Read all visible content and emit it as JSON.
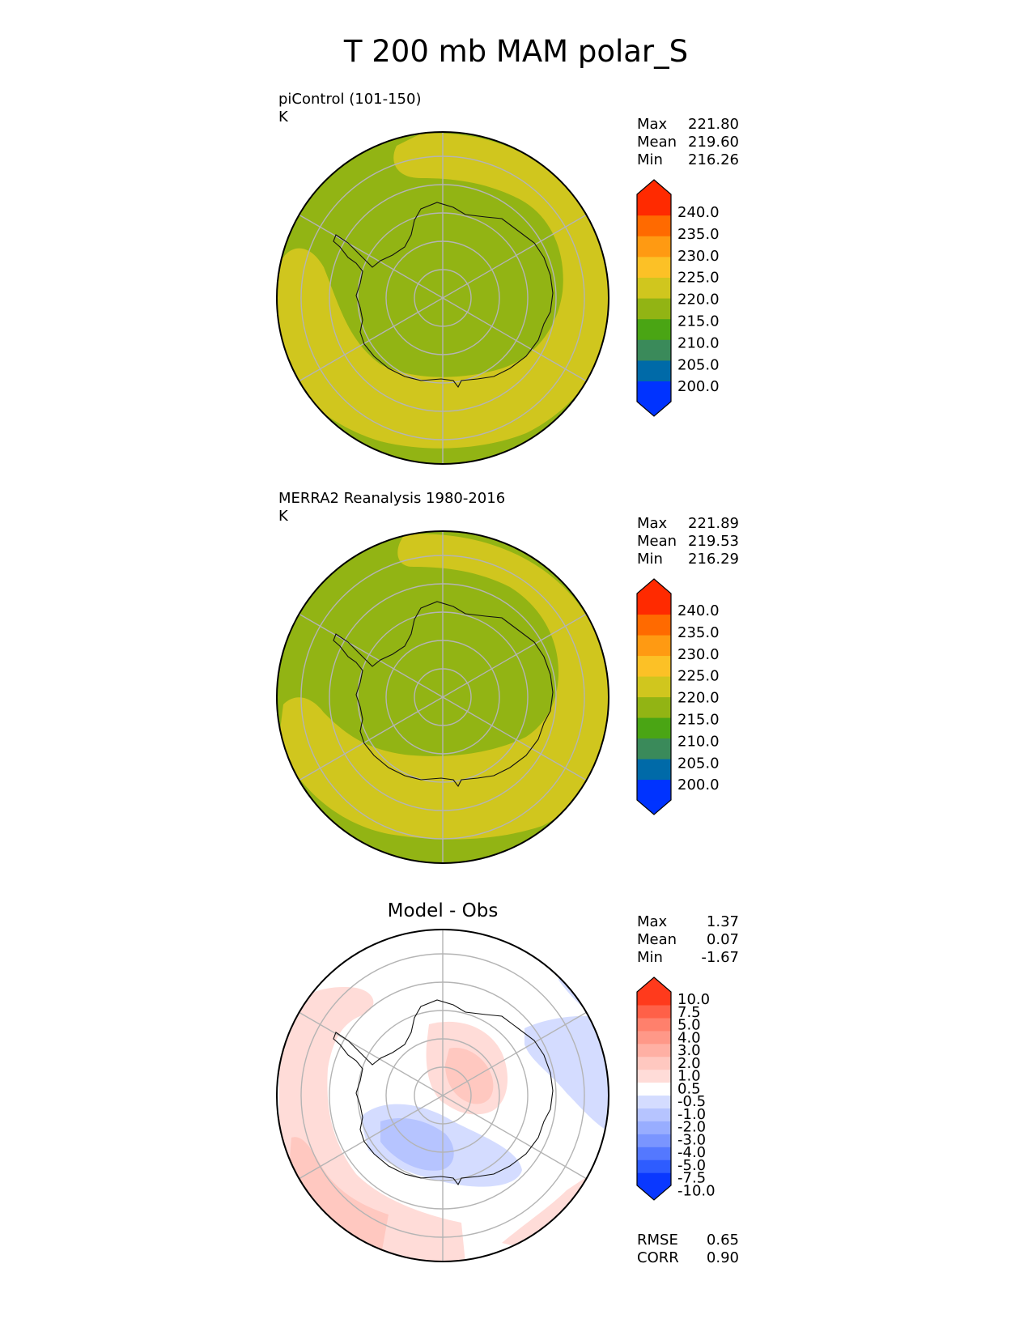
{
  "title": "T 200 mb MAM polar_S",
  "colors": {
    "abs_bands": [
      "#0033ff",
      "#006aa8",
      "#3a8a5a",
      "#4aa514",
      "#92b414",
      "#d0c61e",
      "#fcc126",
      "#ff9a12",
      "#ff6a00",
      "#ff2a00"
    ],
    "diff_bands": [
      "#0a38ff",
      "#2e5cff",
      "#5478ff",
      "#7a95ff",
      "#98adff",
      "#b6c4ff",
      "#d4dcff",
      "#ffffff",
      "#ffdcd8",
      "#ffc8c0",
      "#ffb0a4",
      "#ff9888",
      "#ff806c",
      "#ff6048",
      "#ff3a1c"
    ]
  },
  "chart_data": [
    {
      "type": "heatmap",
      "projection": "south-polar-stereographic",
      "title": "piControl (101-150)",
      "units": "K",
      "stats": {
        "max": "221.80",
        "mean": "219.60",
        "min": "216.26"
      },
      "colorbar": {
        "ticks": [
          "240.0",
          "235.0",
          "230.0",
          "225.0",
          "220.0",
          "215.0",
          "210.0",
          "205.0",
          "200.0"
        ],
        "extend": "both"
      }
    },
    {
      "type": "heatmap",
      "projection": "south-polar-stereographic",
      "title": "MERRA2 Reanalysis 1980-2016",
      "units": "K",
      "stats": {
        "max": "221.89",
        "mean": "219.53",
        "min": "216.29"
      },
      "colorbar": {
        "ticks": [
          "240.0",
          "235.0",
          "230.0",
          "225.0",
          "220.0",
          "215.0",
          "210.0",
          "205.0",
          "200.0"
        ],
        "extend": "both"
      }
    },
    {
      "type": "heatmap",
      "projection": "south-polar-stereographic",
      "title": "Model - Obs",
      "stats": {
        "max": "1.37",
        "mean": "0.07",
        "min": "-1.67"
      },
      "colorbar": {
        "ticks": [
          "10.0",
          "7.5",
          "5.0",
          "4.0",
          "3.0",
          "2.0",
          "1.0",
          "0.5",
          "-0.5",
          "-1.0",
          "-2.0",
          "-3.0",
          "-4.0",
          "-5.0",
          "-7.5",
          "-10.0"
        ],
        "extend": "both"
      },
      "metrics": {
        "rmse": "0.65",
        "corr": "0.90"
      }
    }
  ],
  "labels": {
    "max": "Max",
    "mean": "Mean",
    "min": "Min",
    "rmse": "RMSE",
    "corr": "CORR"
  }
}
